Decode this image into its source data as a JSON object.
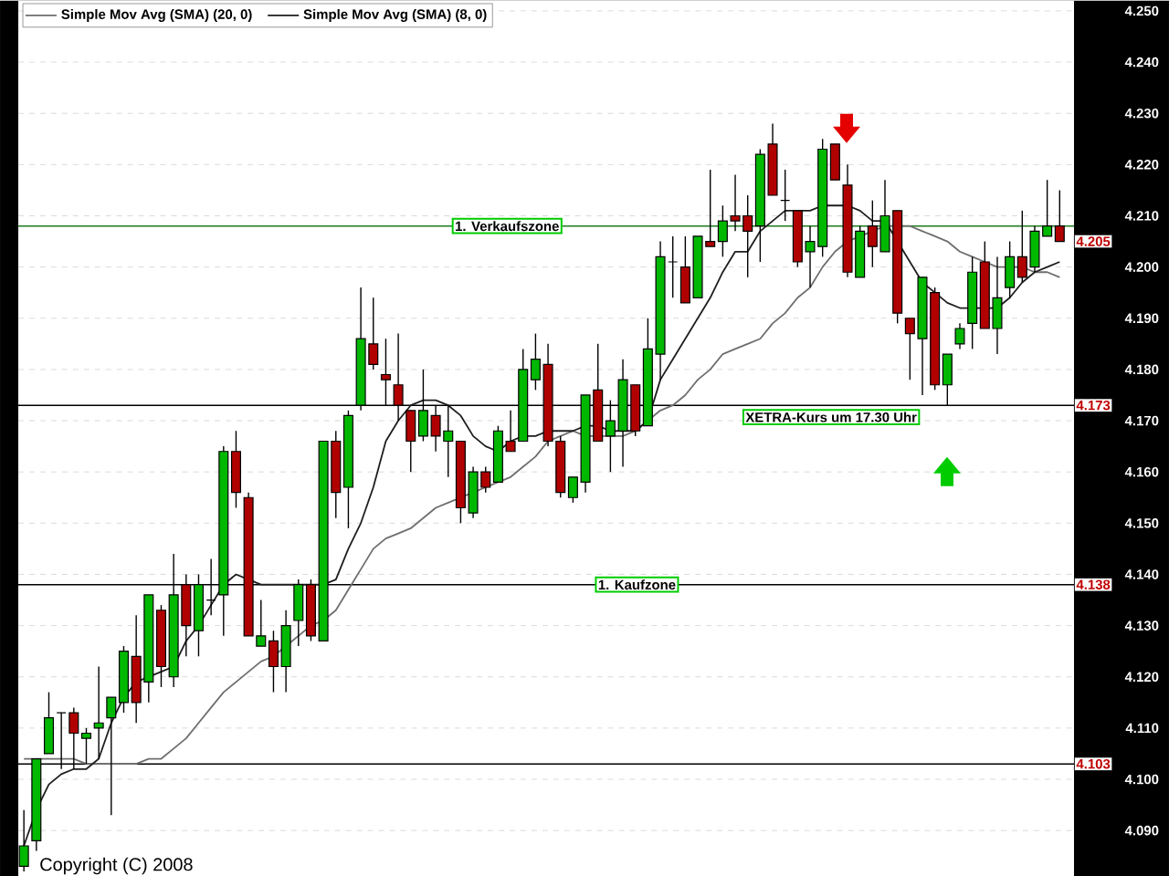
{
  "chart_data": {
    "type": "candlestick",
    "categories": [
      null,
      null,
      null,
      null,
      null,
      null,
      null,
      null,
      null,
      null,
      null,
      null,
      null,
      null,
      null,
      null,
      null,
      null,
      null,
      null,
      null,
      null,
      null,
      null,
      null,
      null,
      null,
      null,
      null,
      null,
      null,
      null,
      null,
      null,
      null,
      null,
      null,
      null,
      null,
      null,
      null,
      null,
      null,
      null,
      null,
      null,
      null,
      null,
      null,
      null,
      null,
      null,
      null,
      null,
      null,
      null,
      null,
      null,
      null,
      null,
      null,
      null,
      null,
      null,
      null,
      null,
      null,
      null,
      null,
      null,
      null,
      null,
      null,
      null,
      null,
      null,
      null,
      null,
      null,
      null,
      null,
      null,
      null,
      null
    ],
    "ohlc": [
      [
        4.083,
        4.094,
        4.082,
        4.087
      ],
      [
        4.088,
        4.104,
        4.086,
        4.104
      ],
      [
        4.105,
        4.117,
        4.105,
        4.112
      ],
      [
        4.113,
        4.113,
        4.102,
        4.113
      ],
      [
        4.113,
        4.114,
        4.102,
        4.109
      ],
      [
        4.108,
        4.11,
        4.103,
        4.109
      ],
      [
        4.11,
        4.122,
        4.104,
        4.111
      ],
      [
        4.112,
        4.116,
        4.093,
        4.116
      ],
      [
        4.115,
        4.126,
        4.113,
        4.125
      ],
      [
        4.124,
        4.132,
        4.111,
        4.115
      ],
      [
        4.119,
        4.136,
        4.115,
        4.136
      ],
      [
        4.133,
        4.134,
        4.118,
        4.122
      ],
      [
        4.12,
        4.144,
        4.118,
        4.136
      ],
      [
        4.138,
        4.14,
        4.124,
        4.13
      ],
      [
        4.129,
        4.14,
        4.124,
        4.138
      ],
      [
        4.135,
        4.143,
        4.132,
        4.135
      ],
      [
        4.136,
        4.165,
        4.128,
        4.164
      ],
      [
        4.164,
        4.168,
        4.153,
        4.156
      ],
      [
        4.155,
        4.156,
        4.128,
        4.128
      ],
      [
        4.126,
        4.135,
        4.126,
        4.128
      ],
      [
        4.127,
        4.129,
        4.117,
        4.122
      ],
      [
        4.122,
        4.133,
        4.117,
        4.13
      ],
      [
        4.131,
        4.139,
        4.126,
        4.138
      ],
      [
        4.138,
        4.139,
        4.127,
        4.128
      ],
      [
        4.127,
        4.166,
        4.127,
        4.166
      ],
      [
        4.166,
        4.168,
        4.151,
        4.156
      ],
      [
        4.157,
        4.172,
        4.149,
        4.171
      ],
      [
        4.173,
        4.196,
        4.172,
        4.186
      ],
      [
        4.185,
        4.194,
        4.18,
        4.181
      ],
      [
        4.179,
        4.186,
        4.173,
        4.178
      ],
      [
        4.177,
        4.187,
        4.17,
        4.173
      ],
      [
        4.172,
        4.172,
        4.16,
        4.166
      ],
      [
        4.167,
        4.18,
        4.166,
        4.172
      ],
      [
        4.171,
        4.173,
        4.164,
        4.167
      ],
      [
        4.166,
        4.173,
        4.159,
        4.168
      ],
      [
        4.166,
        4.166,
        4.15,
        4.153
      ],
      [
        4.152,
        4.161,
        4.151,
        4.16
      ],
      [
        4.16,
        4.161,
        4.156,
        4.157
      ],
      [
        4.158,
        4.169,
        4.158,
        4.168
      ],
      [
        4.166,
        4.172,
        4.164,
        4.164
      ],
      [
        4.166,
        4.184,
        4.166,
        4.18
      ],
      [
        4.178,
        4.187,
        4.176,
        4.182
      ],
      [
        4.181,
        4.185,
        4.165,
        4.166
      ],
      [
        4.166,
        4.167,
        4.155,
        4.156
      ],
      [
        4.155,
        4.159,
        4.154,
        4.159
      ],
      [
        4.158,
        4.175,
        4.156,
        4.175
      ],
      [
        4.176,
        4.185,
        4.166,
        4.166
      ],
      [
        4.167,
        4.174,
        4.16,
        4.17
      ],
      [
        4.168,
        4.182,
        4.161,
        4.178
      ],
      [
        4.177,
        4.177,
        4.167,
        4.168
      ],
      [
        4.169,
        4.19,
        4.169,
        4.184
      ],
      [
        4.183,
        4.205,
        4.178,
        4.202
      ],
      [
        4.201,
        4.206,
        4.194,
        4.201
      ],
      [
        4.2,
        4.206,
        4.193,
        4.193
      ],
      [
        4.194,
        4.206,
        4.194,
        4.206
      ],
      [
        4.205,
        4.219,
        4.204,
        4.204
      ],
      [
        4.205,
        4.212,
        4.202,
        4.209
      ],
      [
        4.21,
        4.218,
        4.207,
        4.209
      ],
      [
        4.21,
        4.214,
        4.198,
        4.207
      ],
      [
        4.208,
        4.223,
        4.201,
        4.222
      ],
      [
        4.224,
        4.228,
        4.214,
        4.214
      ],
      [
        4.213,
        4.219,
        4.209,
        4.213
      ],
      [
        4.211,
        4.211,
        4.2,
        4.201
      ],
      [
        4.203,
        4.208,
        4.196,
        4.205
      ],
      [
        4.204,
        4.225,
        4.202,
        4.223
      ],
      [
        4.224,
        4.224,
        4.217,
        4.217
      ],
      [
        4.216,
        4.22,
        4.198,
        4.199
      ],
      [
        4.198,
        4.208,
        4.198,
        4.207
      ],
      [
        4.208,
        4.213,
        4.2,
        4.204
      ],
      [
        4.203,
        4.217,
        4.203,
        4.21
      ],
      [
        4.211,
        4.211,
        4.189,
        4.191
      ],
      [
        4.19,
        4.19,
        4.178,
        4.187
      ],
      [
        4.186,
        4.198,
        4.175,
        4.198
      ],
      [
        4.195,
        4.196,
        4.176,
        4.177
      ],
      [
        4.177,
        4.183,
        4.173,
        4.183
      ],
      [
        4.185,
        4.189,
        4.184,
        4.188
      ],
      [
        4.189,
        4.202,
        4.184,
        4.199
      ],
      [
        4.201,
        4.205,
        4.188,
        4.188
      ],
      [
        4.188,
        4.202,
        4.183,
        4.194
      ],
      [
        4.196,
        4.205,
        4.194,
        4.202
      ],
      [
        4.202,
        4.211,
        4.197,
        4.198
      ],
      [
        4.2,
        4.208,
        4.199,
        4.207
      ],
      [
        4.206,
        4.217,
        4.206,
        4.208
      ],
      [
        4.208,
        4.215,
        4.205,
        4.205
      ]
    ],
    "series": [
      {
        "name": "Simple Mov Avg (SMA) (20, 0)",
        "type": "line",
        "color": "#6e6e6e",
        "values": [
          4.104,
          4.104,
          4.104,
          4.104,
          4.104,
          4.103,
          4.103,
          4.103,
          4.103,
          4.103,
          4.104,
          4.104,
          4.106,
          4.108,
          4.111,
          4.114,
          4.117,
          4.119,
          4.121,
          4.123,
          4.124,
          4.126,
          4.128,
          4.13,
          4.131,
          4.133,
          4.137,
          4.141,
          4.145,
          4.147,
          4.148,
          4.149,
          4.151,
          4.153,
          4.154,
          4.155,
          4.156,
          4.157,
          4.158,
          4.159,
          4.161,
          4.163,
          4.166,
          4.167,
          4.168,
          4.167,
          4.167,
          4.167,
          4.167,
          4.168,
          4.17,
          4.172,
          4.173,
          4.175,
          4.178,
          4.18,
          4.183,
          4.184,
          4.185,
          4.186,
          4.189,
          4.191,
          4.194,
          4.196,
          4.2,
          4.203,
          4.205,
          4.206,
          4.207,
          4.208,
          4.208,
          4.208,
          4.207,
          4.206,
          4.205,
          4.203,
          4.202,
          4.201,
          4.2,
          4.2,
          4.2,
          4.199,
          4.199,
          4.198
        ]
      },
      {
        "name": "Simple Mov Avg (SMA) (8, 0)",
        "type": "line",
        "color": "#1e1e1e",
        "values": [
          4.087,
          4.094,
          4.099,
          4.101,
          4.102,
          4.102,
          4.104,
          4.111,
          4.116,
          4.119,
          4.12,
          4.121,
          4.122,
          4.127,
          4.13,
          4.134,
          4.138,
          4.14,
          4.139,
          4.138,
          4.138,
          4.138,
          4.138,
          4.138,
          4.138,
          4.139,
          4.145,
          4.15,
          4.157,
          4.166,
          4.17,
          4.173,
          4.174,
          4.174,
          4.173,
          4.171,
          4.167,
          4.165,
          4.164,
          4.166,
          4.167,
          4.167,
          4.168,
          4.168,
          4.168,
          4.169,
          4.169,
          4.168,
          4.168,
          4.168,
          4.17,
          4.178,
          4.182,
          4.186,
          4.19,
          4.194,
          4.199,
          4.203,
          4.203,
          4.207,
          4.209,
          4.211,
          4.211,
          4.211,
          4.212,
          4.212,
          4.212,
          4.211,
          4.209,
          4.209,
          4.205,
          4.201,
          4.197,
          4.195,
          4.193,
          4.192,
          4.192,
          4.192,
          4.192,
          4.194,
          4.197,
          4.199,
          4.2,
          4.201
        ]
      }
    ],
    "ylim": [
      4.081,
      4.252
    ],
    "yticks": [
      {
        "value": 4.09,
        "label": "4.090"
      },
      {
        "value": 4.1,
        "label": "4.100"
      },
      {
        "value": 4.11,
        "label": "4.110"
      },
      {
        "value": 4.12,
        "label": "4.120"
      },
      {
        "value": 4.13,
        "label": "4.130"
      },
      {
        "value": 4.14,
        "label": "4.140"
      },
      {
        "value": 4.15,
        "label": "4.150"
      },
      {
        "value": 4.16,
        "label": "4.160"
      },
      {
        "value": 4.17,
        "label": "4.170"
      },
      {
        "value": 4.18,
        "label": "4.180"
      },
      {
        "value": 4.19,
        "label": "4.190"
      },
      {
        "value": 4.2,
        "label": "4.200"
      },
      {
        "value": 4.21,
        "label": "4.210"
      },
      {
        "value": 4.22,
        "label": "4.220"
      },
      {
        "value": 4.23,
        "label": "4.230"
      },
      {
        "value": 4.24,
        "label": "4.240"
      },
      {
        "value": 4.25,
        "label": "4.250"
      }
    ],
    "ref_lines": [
      {
        "axis": "y",
        "value": 4.208,
        "label": "1. Verkaufszone",
        "color": "#1f7a1f"
      },
      {
        "axis": "y",
        "value": 4.173,
        "label": "XETRA-Kurs um 17.30 Uhr",
        "color": "#000000"
      },
      {
        "axis": "y",
        "value": 4.138,
        "label": "1. Kaufzone",
        "color": "#000000"
      },
      {
        "axis": "y",
        "value": 4.103,
        "color": "#000000"
      }
    ],
    "annotations": [
      "Copyright (C) 2008",
      {
        "text": "4.205",
        "y": 4.205
      },
      {
        "text": "4.173",
        "y": 4.173
      },
      {
        "text": "4.138",
        "y": 4.138
      },
      {
        "text": "4.103",
        "y": 4.103
      }
    ],
    "grid": "y",
    "legend": "top left"
  }
}
